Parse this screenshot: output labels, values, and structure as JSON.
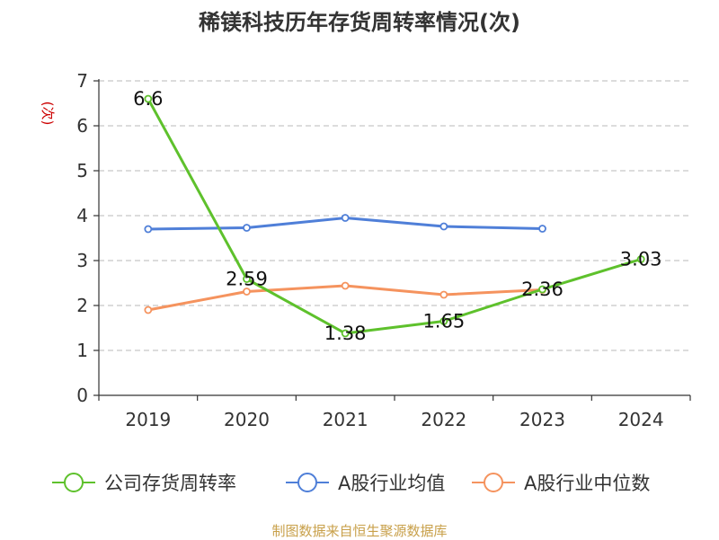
{
  "chart_data": {
    "type": "line",
    "title": "稀镁科技历年存货周转率情况(次)",
    "ylabel": "(次)",
    "xlabel": "",
    "categories": [
      "2019",
      "2020",
      "2021",
      "2022",
      "2023",
      "2024"
    ],
    "ylim": [
      0,
      7
    ],
    "yticks": [
      "0",
      "1",
      "2",
      "3",
      "4",
      "5",
      "6",
      "7"
    ],
    "grid": true,
    "legend_position": "bottom",
    "series": [
      {
        "name": "公司存货周转率",
        "color": "#5ec12c",
        "values": [
          6.6,
          2.59,
          1.38,
          1.65,
          2.36,
          3.03
        ],
        "labels": [
          "6.6",
          "2.59",
          "1.38",
          "1.65",
          "2.36",
          "3.03"
        ]
      },
      {
        "name": "A股行业均值",
        "color": "#4f7fd8",
        "values": [
          3.7,
          3.73,
          3.95,
          3.76,
          3.71,
          null
        ]
      },
      {
        "name": "A股行业中位数",
        "color": "#f5935e",
        "values": [
          1.9,
          2.31,
          2.44,
          2.24,
          2.35,
          null
        ]
      }
    ]
  },
  "source": "制图数据来自恒生聚源数据库"
}
